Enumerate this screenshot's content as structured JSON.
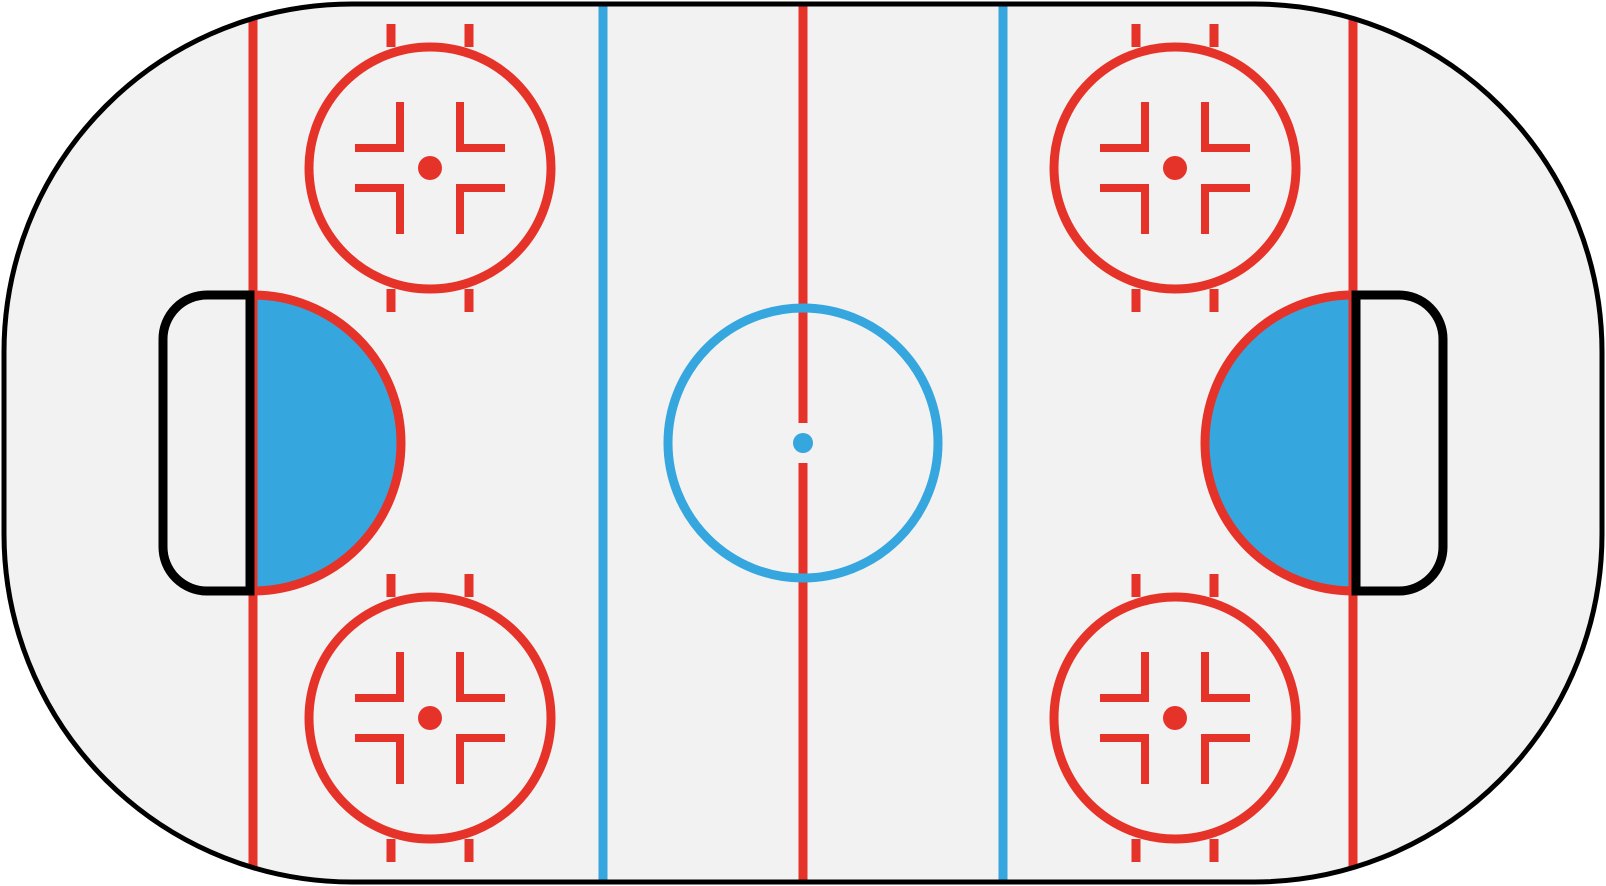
{
  "diagram": {
    "subject": "hockey-rink",
    "colors": {
      "ice": "#f2f2f2",
      "border": "#000000",
      "red_line": "#e63329",
      "blue_line": "#36a6de",
      "crease_fill": "#36a6de"
    },
    "elements": {
      "center_red_line": 1,
      "blue_lines": 2,
      "goal_lines": 2,
      "center_circle": 1,
      "center_dot": 1,
      "faceoff_circles": 4,
      "faceoff_dots": 4,
      "goal_creases": 2,
      "goal_nets": 2
    }
  }
}
